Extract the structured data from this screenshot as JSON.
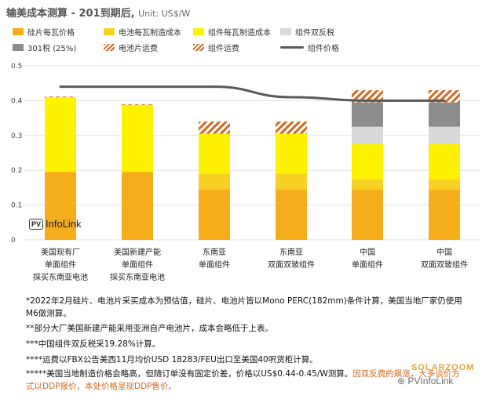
{
  "title": "输美成本测算 - 201到期后,",
  "unit": "Unit: US$/W",
  "legend": [
    {
      "label": "硅片每瓦价格",
      "kind": "swatch",
      "color": "#f5ad1b"
    },
    {
      "label": "电池每瓦制造成本",
      "kind": "swatch",
      "color": "#f7d224"
    },
    {
      "label": "组件每瓦制造成本",
      "kind": "swatch",
      "color": "#fff200"
    },
    {
      "label": "组件双反税",
      "kind": "swatch",
      "color": "#d9d9d9"
    },
    {
      "label": "301税 (25%)",
      "kind": "swatch",
      "color": "#8c8c8c"
    },
    {
      "label": "电池片运费",
      "kind": "hatch",
      "color": "#d2691e"
    },
    {
      "label": "组件运费",
      "kind": "hatch",
      "color": "#d2691e"
    },
    {
      "label": "组件价格",
      "kind": "line",
      "color": "#595959"
    }
  ],
  "x_labels": [
    [
      "美国现有厂",
      "单面组件",
      "採买东南亚电池"
    ],
    [
      "美国新建产能",
      "单面组件",
      "採买东南亚电池"
    ],
    [
      "东南亚",
      "单面组件"
    ],
    [
      "东南亚",
      "双面双玻组件"
    ],
    [
      "中国",
      "单面组件"
    ],
    [
      "中国",
      "双面双玻组件"
    ]
  ],
  "chart_data": {
    "type": "bar",
    "stacked": true,
    "ylim": [
      0,
      0.5
    ],
    "yticks": [
      "0",
      "0.1",
      "0.2",
      "0.3",
      "0.4",
      "0.5"
    ],
    "series": [
      {
        "name": "硅片每瓦价格",
        "color": "#f5ad1b",
        "values": [
          0.195,
          0.195,
          0.145,
          0.145,
          0.145,
          0.145
        ]
      },
      {
        "name": "电池每瓦制造成本",
        "color": "#f7d224",
        "values": [
          0,
          0,
          0.045,
          0.045,
          0.03,
          0.03
        ]
      },
      {
        "name": "组件每瓦制造成本",
        "color": "#fff200",
        "values": [
          0.215,
          0.193,
          0.115,
          0.115,
          0.1,
          0.1
        ]
      },
      {
        "name": "组件双反税",
        "color": "#d9d9d9",
        "values": [
          0,
          0,
          0,
          0,
          0.05,
          0.05
        ]
      },
      {
        "name": "301税 (25%)",
        "color": "#8c8c8c",
        "values": [
          0,
          0,
          0,
          0,
          0.07,
          0.07
        ]
      },
      {
        "name": "电池片运费",
        "color": "#d2691e",
        "hatch": true,
        "values": [
          0.002,
          0.002,
          0,
          0,
          0,
          0
        ]
      },
      {
        "name": "组件运费",
        "color": "#d2691e",
        "hatch": true,
        "values": [
          0,
          0,
          0.035,
          0.035,
          0.035,
          0.035
        ]
      }
    ],
    "line": {
      "name": "组件价格",
      "color": "#595959",
      "values": [
        0.44,
        0.44,
        0.44,
        0.41,
        0.4,
        0.4
      ]
    },
    "grid": true
  },
  "notes": [
    "*2022年2月硅片、电池片采买成本为预估值，硅片、电池片皆以Mono PERC(182mm)条件计算，美国当地厂家仍使用M6做测算。",
    "**部分大厂美国新建产能采用亚洲自产电池片，成本会略低于上表。",
    "***中国组件双反税采19.28%计算。",
    "****运费以FBX公告美西11月均价USD 18283/FEU出口至美国40呎货柜计算。"
  ],
  "note5": {
    "main": "*****美国当地制造价格会略高，但随订单没有固定价差，价格以US$0.44-0.45/W测算。",
    "warn1": "因双反",
    "warn2": "费的飙涨，大多谈价方式以DDP报价，本处价格呈现DDP售价。"
  },
  "logo": {
    "badge": "PV",
    "text": "InfoLink"
  },
  "watermark": {
    "brand": "SOLARZOOM",
    "account": "PVInfoLink"
  }
}
